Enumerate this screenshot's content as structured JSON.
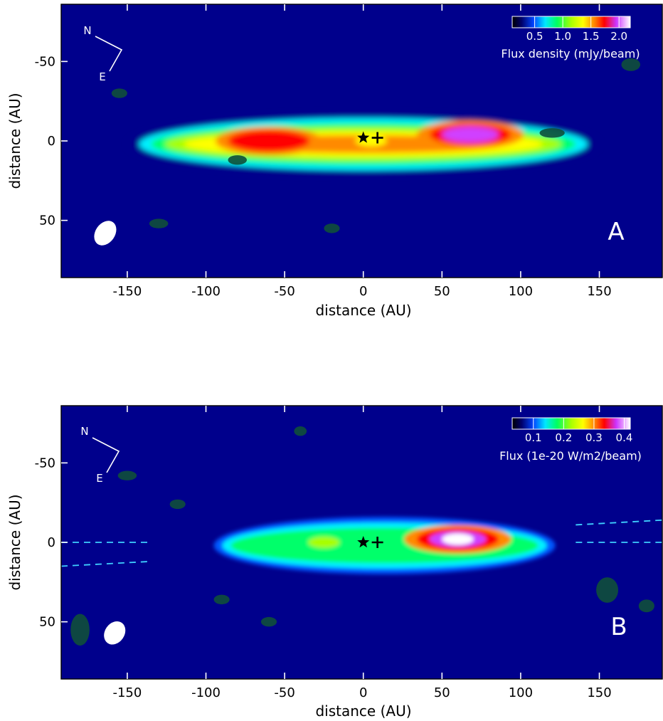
{
  "chart_data": [
    {
      "type": "heatmap",
      "panel_label": "A",
      "xlabel": "distance (AU)",
      "ylabel": "distance (AU)",
      "xlim": [
        -192,
        190
      ],
      "ylim": [
        86,
        -86
      ],
      "xticks": [
        -150,
        -100,
        -50,
        0,
        50,
        100,
        150
      ],
      "yticks": [
        -50,
        0,
        50
      ],
      "xtick_labels": [
        "-150",
        "-100",
        "-50",
        "0",
        "50",
        "100",
        "150"
      ],
      "ytick_labels": [
        "-50",
        "0",
        "50"
      ],
      "colorbar": {
        "label": "Flux density (mJy/beam)",
        "range": [
          0.1,
          2.2
        ],
        "ticks": [
          0.5,
          1.0,
          1.5,
          2.0
        ],
        "tick_labels": [
          "0.5",
          "1.0",
          "1.5",
          "2.0"
        ]
      },
      "compass": {
        "north_label": "N",
        "east_label": "E"
      },
      "star_marker": {
        "x": 0,
        "y": -2
      },
      "plus_marker": {
        "x": 9,
        "y": -2
      },
      "disk": {
        "x_from": -150,
        "x_to": 150,
        "center_y": 2,
        "half_height": 20
      },
      "emission_peaks": [
        {
          "x": -60,
          "y": 0,
          "level": 1.95
        },
        {
          "x": 68,
          "y": -4,
          "level": 2.1
        },
        {
          "x": 5,
          "y": 0,
          "level": 1.55
        }
      ],
      "beam": {
        "x": -164,
        "y": 58,
        "major": 14,
        "minor": 10
      }
    },
    {
      "type": "heatmap",
      "panel_label": "B",
      "xlabel": "distance (AU)",
      "ylabel": "distance (AU)",
      "xlim": [
        -192,
        190
      ],
      "ylim": [
        86,
        -86
      ],
      "xticks": [
        -150,
        -100,
        -50,
        0,
        50,
        100,
        150
      ],
      "yticks": [
        -50,
        0,
        50
      ],
      "xtick_labels": [
        "-150",
        "-100",
        "-50",
        "0",
        "50",
        "100",
        "150"
      ],
      "ytick_labels": [
        "-50",
        "0",
        "50"
      ],
      "colorbar": {
        "label": "Flux (1e-20 W/m2/beam)",
        "range": [
          0.03,
          0.42
        ],
        "ticks": [
          0.1,
          0.2,
          0.3,
          0.4
        ],
        "tick_labels": [
          "0.1",
          "0.2",
          "0.3",
          "0.4"
        ]
      },
      "compass": {
        "north_label": "N",
        "east_label": "E"
      },
      "star_marker": {
        "x": 0,
        "y": 0
      },
      "plus_marker": {
        "x": 9,
        "y": 0
      },
      "disk": {
        "x_from": -95,
        "x_to": 122,
        "center_y": 2,
        "half_height": 18
      },
      "emission_peaks": [
        {
          "x": 60,
          "y": -2,
          "level": 0.42
        },
        {
          "x": -25,
          "y": 0,
          "level": 0.25
        }
      ],
      "beam": {
        "x": -158,
        "y": 57,
        "major": 13,
        "minor": 10
      },
      "dashed_lines": [
        {
          "x": [
            -192,
            -135
          ],
          "y": [
            0,
            0
          ]
        },
        {
          "x": [
            -192,
            -135
          ],
          "y": [
            15,
            12
          ]
        },
        {
          "x": [
            135,
            190
          ],
          "y": [
            0,
            0
          ]
        },
        {
          "x": [
            135,
            190
          ],
          "y": [
            -11,
            -14
          ]
        }
      ]
    }
  ]
}
